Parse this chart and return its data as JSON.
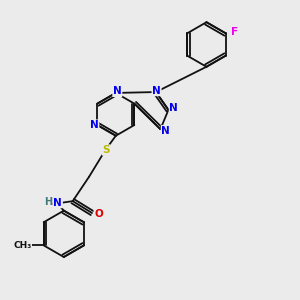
{
  "bg_color": "#ebebeb",
  "atom_colors": {
    "N": "#0000ee",
    "S": "#bbbb00",
    "O": "#dd0000",
    "F": "#ee00ee",
    "H": "#447777",
    "C": "#111111"
  },
  "bond_color": "#111111",
  "font_size": 7.5,
  "line_width": 1.3
}
